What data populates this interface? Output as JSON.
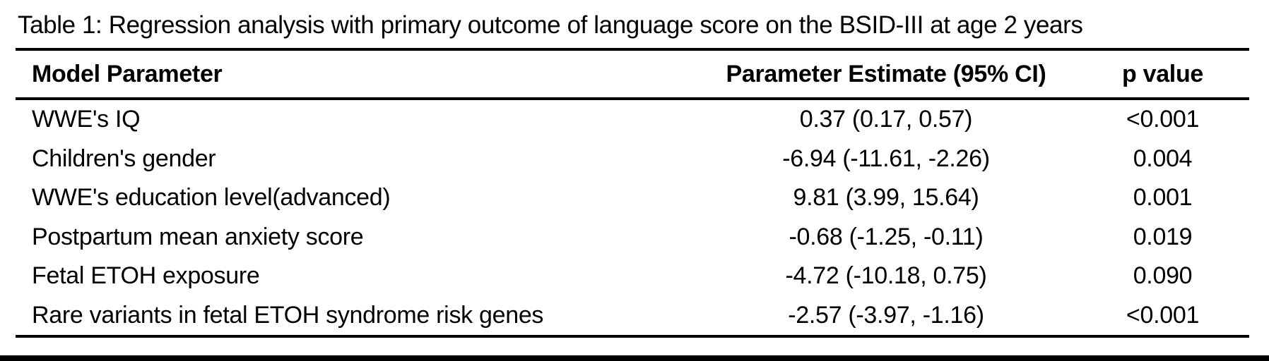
{
  "caption": "Table 1: Regression analysis with primary outcome of language score on the BSID-III at age 2 years",
  "table": {
    "columns": {
      "parameter": "Model Parameter",
      "estimate": "Parameter Estimate (95% CI)",
      "p_value": "p value"
    },
    "rows": [
      {
        "parameter": "WWE's IQ",
        "estimate": "0.37 (0.17, 0.57)",
        "p_value": "<0.001"
      },
      {
        "parameter": "Children's gender",
        "estimate": "-6.94 (-11.61, -2.26)",
        "p_value": "0.004"
      },
      {
        "parameter": "WWE's education level(advanced)",
        "estimate": "9.81 (3.99, 15.64)",
        "p_value": "0.001"
      },
      {
        "parameter": "Postpartum mean anxiety score",
        "estimate": "-0.68 (-1.25, -0.11)",
        "p_value": "0.019"
      },
      {
        "parameter": "Fetal ETOH exposure",
        "estimate": "-4.72 (-10.18, 0.75)",
        "p_value": "0.090"
      },
      {
        "parameter": "Rare variants in fetal ETOH syndrome risk genes",
        "estimate": "-2.57 (-3.97, -1.16)",
        "p_value": "<0.001"
      }
    ]
  },
  "colors": {
    "text": "#000000",
    "background": "#ffffff",
    "rule": "#000000"
  }
}
